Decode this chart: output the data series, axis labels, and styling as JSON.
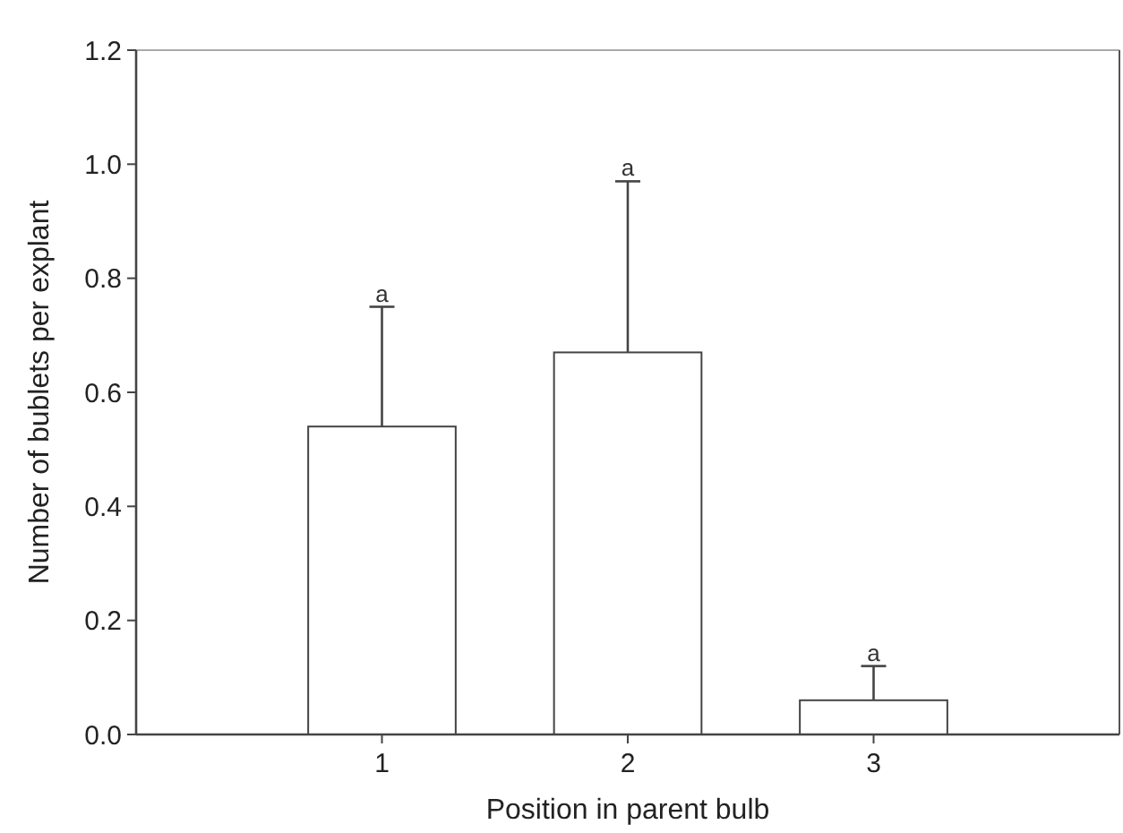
{
  "chart_data": {
    "type": "bar",
    "xlabel": "Position in parent bulb",
    "ylabel": "Number of bublets per explant",
    "categories": [
      "1",
      "2",
      "3"
    ],
    "values": [
      0.54,
      0.67,
      0.06
    ],
    "color": "#ffffff",
    "errors": [
      [
        0.54,
        0.75
      ],
      [
        0.67,
        0.97
      ],
      [
        0.06,
        0.12
      ]
    ],
    "ylim": [
      0,
      1.2
    ],
    "yticks": [
      {
        "value": 0,
        "label": "0.0"
      },
      {
        "value": 0.2,
        "label": "0.2"
      },
      {
        "value": 0.4,
        "label": "0.4"
      },
      {
        "value": 0.6,
        "label": "0.6"
      },
      {
        "value": 0.8,
        "label": "0.8"
      },
      {
        "value": 1,
        "label": "1.0"
      },
      {
        "value": 1.2,
        "label": "1.2"
      }
    ],
    "annotations": [
      {
        "text": "a",
        "x": "1",
        "y": 0.75
      },
      {
        "text": "a",
        "x": "2",
        "y": 0.97
      },
      {
        "text": "a",
        "x": "3",
        "y": 0.12
      }
    ]
  }
}
